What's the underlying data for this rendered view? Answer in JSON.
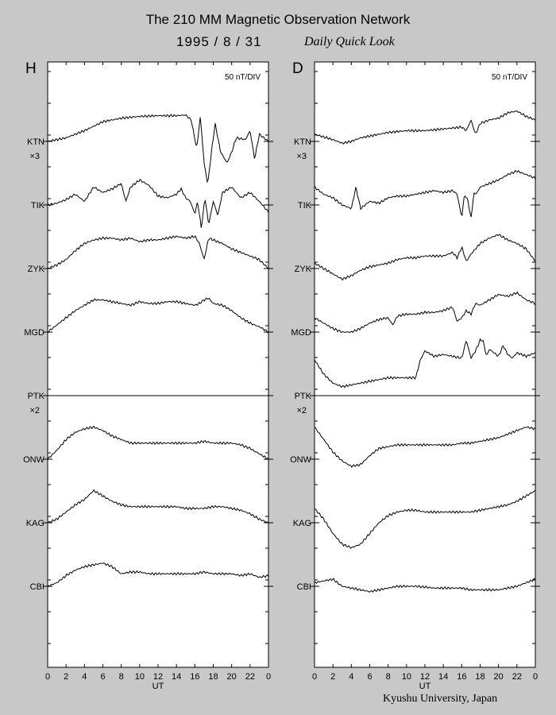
{
  "header": {
    "title": "The 210 MM Magnetic Observation Network",
    "date": "1995 /  8 / 31",
    "subtitle": "Daily Quick Look"
  },
  "footer": {
    "credit": "Kyushu University, Japan"
  },
  "chart_data": [
    {
      "type": "line",
      "panel": "H",
      "scale_label": "50 nT/DIV",
      "xlabel": "UT",
      "x_ticks": [
        "0",
        "2",
        "4",
        "6",
        "8",
        "10",
        "12",
        "14",
        "16",
        "18",
        "20",
        "22",
        "0"
      ],
      "xlim": [
        0,
        24
      ],
      "grid": false,
      "stations": [
        {
          "name": "KTN",
          "multiplier": "×3"
        },
        {
          "name": "TIK",
          "multiplier": ""
        },
        {
          "name": "ZYK",
          "multiplier": ""
        },
        {
          "name": "MGD",
          "multiplier": ""
        },
        {
          "name": "PTK",
          "multiplier": "×2"
        },
        {
          "name": "ONW",
          "multiplier": ""
        },
        {
          "name": "KAG",
          "multiplier": ""
        },
        {
          "name": "CBI",
          "multiplier": ""
        }
      ],
      "series": [
        {
          "name": "KTN",
          "x": [
            0,
            2,
            4,
            6,
            8,
            10,
            12,
            13,
            14,
            15,
            15.6,
            16.2,
            16.6,
            17.0,
            17.4,
            17.8,
            18.2,
            18.8,
            19.5,
            20,
            20.5,
            21.5,
            22,
            22.5,
            23,
            24
          ],
          "y": [
            0,
            0.1,
            0.3,
            0.55,
            0.65,
            0.7,
            0.72,
            0.72,
            0.72,
            0.74,
            0.6,
            -0.2,
            0.7,
            -0.6,
            -1.2,
            -0.3,
            0.5,
            -0.3,
            -0.6,
            -0.3,
            0.1,
            0.05,
            0.3,
            -0.5,
            0.2,
            0
          ]
        },
        {
          "name": "TIK",
          "x": [
            0,
            1,
            2,
            3,
            4,
            5,
            6,
            7,
            8,
            8.5,
            9,
            10,
            11,
            12,
            13,
            14,
            14.5,
            15,
            15.5,
            16,
            16.3,
            16.7,
            17.1,
            17.5,
            18,
            18.5,
            19,
            20,
            21,
            22,
            23,
            24
          ],
          "y": [
            0,
            0.05,
            0.15,
            0.3,
            0.1,
            0.5,
            0.35,
            0.45,
            0.6,
            0.1,
            0.5,
            0.7,
            0.55,
            0.25,
            0.2,
            0.3,
            0.45,
            0.2,
            0.1,
            -0.25,
            0.1,
            -0.65,
            0.2,
            -0.55,
            0.1,
            -0.3,
            0.35,
            0.5,
            0.2,
            0.35,
            0.1,
            -0.2
          ]
        },
        {
          "name": "ZYK",
          "x": [
            0,
            1,
            2,
            3,
            4,
            5,
            6,
            7,
            8,
            9,
            10,
            11,
            12,
            13,
            14,
            15,
            16,
            16.5,
            17,
            17.5,
            18,
            19,
            20,
            21,
            22,
            23,
            24
          ],
          "y": [
            0,
            0.1,
            0.25,
            0.5,
            0.7,
            0.8,
            0.85,
            0.85,
            0.8,
            0.85,
            0.75,
            0.8,
            0.8,
            0.85,
            0.9,
            0.85,
            0.9,
            0.7,
            0.25,
            0.85,
            0.8,
            0.7,
            0.55,
            0.45,
            0.35,
            0.25,
            0
          ]
        },
        {
          "name": "MGD",
          "x": [
            0,
            1,
            2,
            3,
            4,
            5,
            6,
            7,
            8,
            9,
            10,
            11,
            12,
            13,
            14,
            15,
            16,
            16.5,
            17,
            17.5,
            18,
            19,
            20,
            21,
            22,
            23,
            24
          ],
          "y": [
            0,
            0.2,
            0.4,
            0.6,
            0.75,
            0.9,
            0.9,
            0.85,
            0.8,
            0.75,
            0.85,
            0.8,
            0.8,
            0.85,
            0.85,
            0.8,
            0.75,
            0.8,
            0.9,
            0.95,
            0.8,
            0.75,
            0.6,
            0.4,
            0.25,
            0.15,
            0
          ]
        },
        {
          "name": "ONW",
          "x": [
            0,
            1,
            2,
            3,
            4,
            5,
            6,
            7,
            8,
            9,
            10,
            11,
            12,
            13,
            14,
            15,
            16,
            17,
            18,
            19,
            20,
            21,
            22,
            23,
            24
          ],
          "y": [
            0,
            0.25,
            0.55,
            0.75,
            0.85,
            0.9,
            0.8,
            0.65,
            0.55,
            0.45,
            0.45,
            0.45,
            0.45,
            0.45,
            0.45,
            0.45,
            0.45,
            0.5,
            0.45,
            0.45,
            0.45,
            0.4,
            0.3,
            0.15,
            0
          ]
        },
        {
          "name": "KAG",
          "x": [
            0,
            1,
            2,
            3,
            4,
            5,
            6,
            7,
            8,
            9,
            10,
            11,
            12,
            13,
            14,
            15,
            16,
            17,
            18,
            19,
            20,
            21,
            22,
            23,
            24
          ],
          "y": [
            0,
            0.1,
            0.3,
            0.5,
            0.65,
            0.9,
            0.75,
            0.6,
            0.5,
            0.45,
            0.45,
            0.45,
            0.45,
            0.45,
            0.45,
            0.4,
            0.4,
            0.4,
            0.45,
            0.45,
            0.4,
            0.35,
            0.25,
            0.1,
            0
          ]
        },
        {
          "name": "CBI",
          "x": [
            0,
            1,
            2,
            3,
            4,
            5,
            6,
            7,
            8,
            9,
            10,
            11,
            12,
            13,
            14,
            15,
            16,
            17,
            18,
            19,
            20,
            21,
            22,
            23,
            24
          ],
          "y": [
            0,
            0.1,
            0.3,
            0.45,
            0.55,
            0.6,
            0.65,
            0.55,
            0.35,
            0.4,
            0.4,
            0.35,
            0.35,
            0.35,
            0.35,
            0.35,
            0.35,
            0.4,
            0.35,
            0.35,
            0.35,
            0.3,
            0.35,
            0.25,
            0.3
          ]
        }
      ]
    },
    {
      "type": "line",
      "panel": "D",
      "scale_label": "50 nT/DIV",
      "xlabel": "UT",
      "x_ticks": [
        "0",
        "2",
        "4",
        "6",
        "8",
        "10",
        "12",
        "14",
        "16",
        "18",
        "20",
        "22",
        "0"
      ],
      "xlim": [
        0,
        24
      ],
      "grid": false,
      "stations": [
        {
          "name": "KTN",
          "multiplier": "×3"
        },
        {
          "name": "TIK",
          "multiplier": ""
        },
        {
          "name": "ZYK",
          "multiplier": ""
        },
        {
          "name": "MGD",
          "multiplier": ""
        },
        {
          "name": "PTK",
          "multiplier": "×2"
        },
        {
          "name": "ONW",
          "multiplier": ""
        },
        {
          "name": "KAG",
          "multiplier": ""
        },
        {
          "name": "CBI",
          "multiplier": ""
        }
      ],
      "series": [
        {
          "name": "KTN",
          "x": [
            0,
            2,
            3,
            4,
            5,
            6,
            8,
            10,
            12,
            14,
            16,
            16.5,
            17,
            17.5,
            18,
            19,
            20,
            21,
            22,
            23,
            24
          ],
          "y": [
            0.2,
            0.05,
            -0.05,
            0,
            0.1,
            0.15,
            0.25,
            0.3,
            0.3,
            0.35,
            0.4,
            0.3,
            0.6,
            0.2,
            0.5,
            0.6,
            0.65,
            0.8,
            0.85,
            0.7,
            0.6
          ]
        },
        {
          "name": "TIK",
          "x": [
            0,
            1,
            2,
            3,
            4,
            4.5,
            5,
            6,
            7,
            8,
            9,
            10,
            11,
            12,
            13,
            14,
            15,
            15.5,
            16,
            16.3,
            16.7,
            17,
            17.3,
            17.7,
            18,
            19,
            20,
            21,
            22,
            23,
            24
          ],
          "y": [
            0.5,
            0.3,
            0.2,
            0,
            -0.1,
            0.5,
            -0.1,
            0.1,
            0.05,
            0.2,
            0.25,
            0.25,
            0.3,
            0.35,
            0.4,
            0.35,
            0.4,
            0.3,
            -0.35,
            0.3,
            0.1,
            -0.4,
            0.3,
            0.35,
            0.5,
            0.6,
            0.7,
            0.85,
            0.95,
            0.85,
            0.75
          ]
        },
        {
          "name": "ZYK",
          "x": [
            0,
            1,
            2,
            3,
            4,
            5,
            6,
            7,
            8,
            9,
            10,
            11,
            12,
            13,
            14,
            15,
            15.5,
            16,
            16.5,
            17,
            17.5,
            18,
            19,
            20,
            21,
            22,
            23,
            24
          ],
          "y": [
            0.15,
            0,
            -0.15,
            -0.3,
            -0.2,
            -0.05,
            0.05,
            0.1,
            0.15,
            0.25,
            0.3,
            0.3,
            0.35,
            0.35,
            0.35,
            0.45,
            0.3,
            0.6,
            0.2,
            0.4,
            0.55,
            0.7,
            0.85,
            0.95,
            0.8,
            0.7,
            0.55,
            0.2
          ]
        },
        {
          "name": "MGD",
          "x": [
            0,
            1,
            2,
            3,
            4,
            5,
            6,
            7,
            8,
            8.5,
            9,
            10,
            11,
            12,
            13,
            14,
            15,
            15.5,
            16,
            16.5,
            17,
            17.5,
            18,
            19,
            20,
            21,
            22,
            23,
            24
          ],
          "y": [
            0.4,
            0.25,
            0.1,
            0,
            0,
            0.1,
            0.25,
            0.35,
            0.4,
            0.2,
            0.45,
            0.5,
            0.5,
            0.55,
            0.55,
            0.6,
            0.7,
            0.3,
            0.4,
            0.6,
            0.5,
            0.8,
            0.75,
            0.9,
            1.05,
            1.0,
            1.1,
            0.9,
            0.8
          ]
        },
        {
          "name": "PTK",
          "x": [
            0,
            1,
            2,
            3,
            4,
            5,
            6,
            7,
            8,
            9,
            10,
            11,
            11.5,
            12,
            13,
            14,
            15,
            16,
            16.5,
            17,
            17.5,
            18,
            18.3,
            18.7,
            19,
            20,
            20.5,
            21,
            21.5,
            22,
            23,
            24
          ],
          "y": [
            1.0,
            0.6,
            0.35,
            0.25,
            0.3,
            0.35,
            0.4,
            0.45,
            0.5,
            0.5,
            0.5,
            0.5,
            1.0,
            1.25,
            1.1,
            1.15,
            1.1,
            1.05,
            1.55,
            1.05,
            1.25,
            1.55,
            1.55,
            1.1,
            1.3,
            1.1,
            1.4,
            1.15,
            1.05,
            1.2,
            1.1,
            1.2
          ]
        },
        {
          "name": "ONW",
          "x": [
            0,
            1,
            2,
            3,
            4,
            5,
            6,
            7,
            8,
            9,
            10,
            11,
            12,
            13,
            14,
            15,
            16,
            17,
            18,
            19,
            20,
            21,
            22,
            23,
            24
          ],
          "y": [
            0.9,
            0.55,
            0.2,
            -0.05,
            -0.2,
            -0.15,
            0.1,
            0.3,
            0.35,
            0.4,
            0.4,
            0.4,
            0.4,
            0.4,
            0.4,
            0.4,
            0.45,
            0.45,
            0.5,
            0.55,
            0.6,
            0.7,
            0.8,
            0.9,
            0.85
          ]
        },
        {
          "name": "KAG",
          "x": [
            0,
            1,
            2,
            3,
            4,
            5,
            6,
            7,
            8,
            9,
            10,
            11,
            12,
            13,
            14,
            15,
            16,
            17,
            18,
            19,
            20,
            21,
            22,
            23,
            24
          ],
          "y": [
            0.4,
            0.1,
            -0.3,
            -0.6,
            -0.7,
            -0.6,
            -0.3,
            0,
            0.2,
            0.3,
            0.35,
            0.35,
            0.3,
            0.3,
            0.3,
            0.3,
            0.3,
            0.3,
            0.35,
            0.4,
            0.45,
            0.5,
            0.6,
            0.75,
            0.9
          ]
        },
        {
          "name": "CBI",
          "x": [
            0,
            1,
            2,
            3,
            4,
            5,
            6,
            7,
            8,
            9,
            10,
            11,
            12,
            13,
            14,
            15,
            16,
            17,
            18,
            19,
            20,
            21,
            22,
            23,
            24
          ],
          "y": [
            0.1,
            0.15,
            0.2,
            0,
            -0.05,
            -0.1,
            -0.15,
            -0.1,
            -0.05,
            0,
            0,
            0,
            -0.02,
            -0.05,
            -0.05,
            -0.05,
            -0.05,
            -0.1,
            -0.1,
            -0.1,
            -0.1,
            -0.05,
            0,
            0.1,
            0.2
          ]
        }
      ]
    }
  ]
}
